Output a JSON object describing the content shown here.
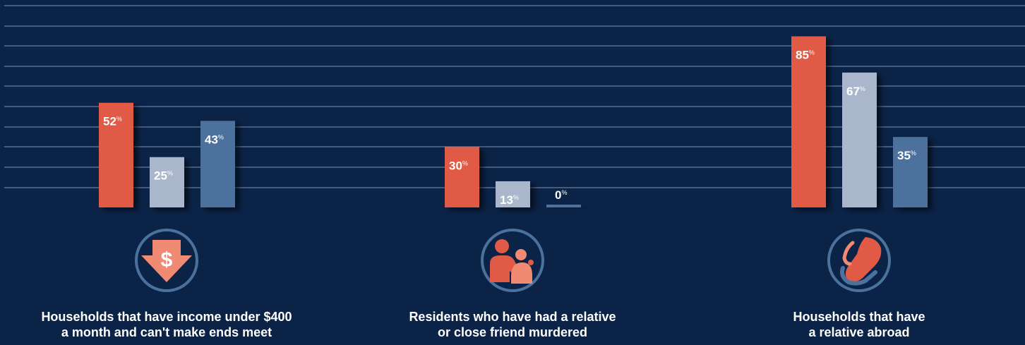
{
  "chart_data": {
    "type": "bar",
    "categories": [
      [
        "Households that have income under $400",
        "a month and can't make ends meet"
      ],
      [
        "Residents who have had a relative",
        "or close friend murdered"
      ],
      [
        "Households that have",
        "a relative abroad"
      ]
    ],
    "series": [
      {
        "values": [
          52,
          30,
          85
        ],
        "color": "#e05a45"
      },
      {
        "values": [
          25,
          13,
          67
        ],
        "color": "#a9b6cc"
      },
      {
        "values": [
          43,
          0,
          35
        ],
        "color": "#4b719c"
      }
    ],
    "value_suffix": "%",
    "ylim": [
      0,
      100
    ],
    "grid": true,
    "icons": [
      "dollar-down-arrow-icon",
      "parent-child-icon",
      "hands-holding-icon"
    ]
  }
}
